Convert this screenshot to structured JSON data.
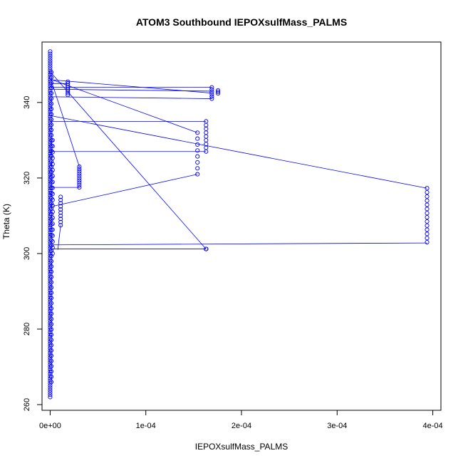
{
  "chart_data": {
    "type": "scatter",
    "title": "ATOM3 Southbound IEPOXsulfMass_PALMS",
    "xlabel": "IEPOXsulfMass_PALMS",
    "ylabel": "Theta (K)",
    "xlim": [
      -8.5e-06,
      0.0004085
    ],
    "ylim": [
      258.5,
      356
    ],
    "xticks": [
      0,
      0.0001,
      0.0002,
      0.0003,
      0.0004
    ],
    "xtick_labels": [
      "0e+00",
      "1e-04",
      "2e-04",
      "3e-04",
      "4e-04"
    ],
    "yticks": [
      260,
      280,
      300,
      320,
      340
    ],
    "ytick_labels": [
      "260",
      "280",
      "300",
      "320",
      "340"
    ],
    "grid": false,
    "legend": "none",
    "marker": "open-circle",
    "color": "#0000ff",
    "series": [
      {
        "clusters": [
          {
            "x": 0.0,
            "ymin": 262,
            "ymax": 353.5,
            "n": 150
          },
          {
            "x": 1.2e-06,
            "ymin": 266,
            "ymax": 348,
            "n": 60
          },
          {
            "x": 2.5e-06,
            "ymin": 300,
            "ymax": 330,
            "n": 20
          },
          {
            "x": 1.1e-05,
            "ymin": 307.5,
            "ymax": 315,
            "n": 10
          },
          {
            "x": 1.85e-05,
            "ymin": 342,
            "ymax": 345.5,
            "n": 8
          },
          {
            "x": 3.05e-05,
            "ymin": 317.5,
            "ymax": 323,
            "n": 10
          },
          {
            "x": 0.000154,
            "ymin": 321,
            "ymax": 332,
            "n": 8
          },
          {
            "x": 0.000163,
            "ymin": 301.2,
            "ymax": 301.2,
            "n": 4
          },
          {
            "x": 0.000163,
            "ymin": 327,
            "ymax": 335,
            "n": 9
          },
          {
            "x": 0.000169,
            "ymin": 341,
            "ymax": 344,
            "n": 6
          },
          {
            "x": 0.0001755,
            "ymin": 342.4,
            "ymax": 343.2,
            "n": 3
          },
          {
            "x": 0.000394,
            "ymin": 303,
            "ymax": 317.3,
            "n": 14
          }
        ],
        "path": [
          [
            5e-07,
            348
          ],
          [
            0.000163,
            301.2
          ],
          [
            1e-06,
            346
          ],
          [
            0.000168,
            342.5
          ],
          [
            1e-06,
            344
          ],
          [
            0.000169,
            344
          ],
          [
            2e-06,
            343.5
          ],
          [
            0.000169,
            343
          ],
          [
            2e-06,
            341.5
          ],
          [
            0.000169,
            341
          ],
          [
            5e-07,
            336.5
          ],
          [
            0.000394,
            317.3
          ],
          [
            1e-06,
            335
          ],
          [
            0.000163,
            335
          ],
          [
            1e-06,
            327
          ],
          [
            0.000163,
            327
          ],
          [
            2e-06,
            317.5
          ],
          [
            3.05e-05,
            317.5
          ],
          [
            2.5e-06,
            312.5
          ],
          [
            0.000154,
            321
          ],
          [
            2.5e-06,
            302.3
          ],
          [
            0.000394,
            302.8
          ],
          [
            1e-06,
            301.2
          ],
          [
            0.000163,
            301.2
          ],
          [
            8e-06,
            301
          ],
          [
            1.1e-05,
            307.5
          ],
          [
            1.5e-06,
            345.5
          ],
          [
            3.05e-05,
            323
          ],
          [
            2e-06,
            346
          ],
          [
            0.000154,
            332
          ],
          [
            1e-06,
            345
          ],
          [
            1.85e-05,
            345
          ]
        ]
      }
    ]
  }
}
